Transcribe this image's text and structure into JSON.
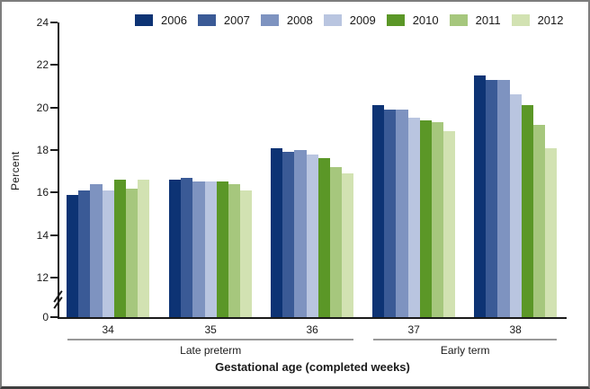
{
  "figure": {
    "background": "#ffffff",
    "border_color": "#7d7d7d",
    "axis_color": "#1a1a1a",
    "bracket_line_color": "#999999"
  },
  "chart_data": {
    "type": "bar",
    "title": "",
    "ylabel": "Percent",
    "xlabel": "Gestational age (completed weeks)",
    "legend_position": "top",
    "grid": false,
    "axis_break_between_0_and_12": true,
    "yticks": [
      0,
      12,
      14,
      16,
      18,
      20,
      22,
      24
    ],
    "ylim": [
      12,
      24
    ],
    "categories": [
      "34",
      "35",
      "36",
      "37",
      "38"
    ],
    "category_groups": [
      {
        "label": "Late preterm",
        "from": 0,
        "to": 2
      },
      {
        "label": "Early term",
        "from": 3,
        "to": 4
      }
    ],
    "series": [
      {
        "name": "2006",
        "color": "#0d3374",
        "values": [
          15.9,
          16.6,
          18.1,
          20.1,
          21.5
        ]
      },
      {
        "name": "2007",
        "color": "#3a5a96",
        "values": [
          16.1,
          16.7,
          17.9,
          19.9,
          21.3
        ]
      },
      {
        "name": "2008",
        "color": "#7e93c0",
        "values": [
          16.4,
          16.5,
          18.0,
          19.9,
          21.3
        ]
      },
      {
        "name": "2009",
        "color": "#b9c5e0",
        "values": [
          16.1,
          16.5,
          17.8,
          19.5,
          20.6
        ]
      },
      {
        "name": "2010",
        "color": "#5b9727",
        "values": [
          16.6,
          16.5,
          17.6,
          19.4,
          20.1
        ]
      },
      {
        "name": "2011",
        "color": "#a6c77d",
        "values": [
          16.2,
          16.4,
          17.2,
          19.3,
          19.2
        ]
      },
      {
        "name": "2012",
        "color": "#d2e2b2",
        "values": [
          16.6,
          16.1,
          16.9,
          18.9,
          18.1
        ]
      }
    ]
  }
}
